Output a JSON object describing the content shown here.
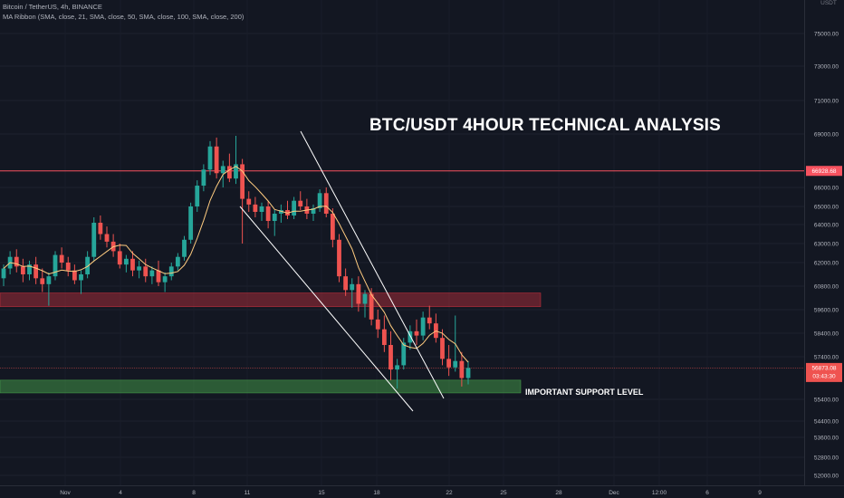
{
  "header": {
    "symbol_line": "Bitcoin / TetherUS, 4h, BINANCE",
    "indicator_line": "MA Ribbon (SMA, close, 21, SMA, close, 50, SMA, close, 100, SMA, close, 200)"
  },
  "quote_currency": "USDT",
  "overlays": {
    "title": "BTC/USDT 4HOUR TECHNICAL ANALYSIS",
    "support_label": "IMPORTANT SUPPORT LEVEL"
  },
  "price_badges": {
    "resistance": "66928.68",
    "current_price": "56873.08",
    "countdown": "03:43:30"
  },
  "colors": {
    "background": "#131722",
    "up": "#26a69a",
    "down": "#ef5350",
    "resistance_line": "#f7525f",
    "resistance_zone": "#f23645",
    "support_zone": "#4caf50",
    "ma": "#ffcc80",
    "trendline": "#ffffff"
  },
  "chart_data": {
    "type": "candlestick",
    "yaxis_ticks": [
      75000,
      73000,
      71000,
      69000,
      66000,
      65000,
      64000,
      63000,
      62000,
      60800,
      59600,
      58400,
      57400,
      55400,
      54400,
      53600,
      52800,
      52000
    ],
    "yaxis_tick_labels": [
      "75000.00",
      "73000.00",
      "71000.00",
      "69000.00",
      "66000.00",
      "65000.00",
      "64000.00",
      "63000.00",
      "62000.00",
      "60800.00",
      "59600.00",
      "58400.00",
      "57400.00",
      "55400.00",
      "54400.00",
      "53600.00",
      "52800.00",
      "52000.00"
    ],
    "xaxis_labels": [
      "Nov",
      "4",
      "8",
      "11",
      "15",
      "18",
      "22",
      "25",
      "28",
      "Dec",
      "12:00",
      "6",
      "9"
    ],
    "resistance_level": 66928.68,
    "current_price": 56873.08,
    "resistance_zone": [
      59750,
      60450
    ],
    "support_zone": [
      55700,
      56300
    ],
    "ma_label": "MA 21",
    "candles": [
      [
        61200,
        61900,
        60800,
        61700
      ],
      [
        61700,
        62600,
        61400,
        62300
      ],
      [
        62300,
        62700,
        61500,
        61800
      ],
      [
        61800,
        62200,
        61000,
        61400
      ],
      [
        61400,
        62100,
        61100,
        61900
      ],
      [
        61900,
        62300,
        60900,
        61200
      ],
      [
        61200,
        61700,
        60500,
        60900
      ],
      [
        60900,
        61500,
        59800,
        61300
      ],
      [
        61300,
        62600,
        61100,
        62400
      ],
      [
        62400,
        62800,
        61700,
        62000
      ],
      [
        62000,
        62300,
        61300,
        61600
      ],
      [
        61600,
        61900,
        60900,
        61100
      ],
      [
        61100,
        61600,
        60400,
        61400
      ],
      [
        61400,
        62600,
        61200,
        62300
      ],
      [
        62300,
        64400,
        62100,
        64100
      ],
      [
        64100,
        64500,
        63200,
        63500
      ],
      [
        63500,
        63900,
        62800,
        63100
      ],
      [
        63100,
        63500,
        62300,
        62600
      ],
      [
        62600,
        63000,
        61700,
        61900
      ],
      [
        61900,
        62400,
        61500,
        62200
      ],
      [
        62200,
        62600,
        61300,
        61600
      ],
      [
        61600,
        62100,
        61200,
        61800
      ],
      [
        61800,
        62200,
        61000,
        61300
      ],
      [
        61300,
        61800,
        60900,
        61600
      ],
      [
        61600,
        62100,
        60800,
        61000
      ],
      [
        61000,
        61500,
        60500,
        61300
      ],
      [
        61300,
        62000,
        61100,
        61800
      ],
      [
        61800,
        62500,
        61600,
        62300
      ],
      [
        62300,
        63400,
        62100,
        63200
      ],
      [
        63200,
        65200,
        63000,
        65000
      ],
      [
        65000,
        66400,
        64700,
        66100
      ],
      [
        66100,
        67300,
        65800,
        67000
      ],
      [
        67000,
        68600,
        66700,
        68300
      ],
      [
        68300,
        68800,
        66500,
        66800
      ],
      [
        66800,
        67500,
        66000,
        67200
      ],
      [
        67200,
        67900,
        66300,
        66500
      ],
      [
        66500,
        68900,
        66200,
        67300
      ],
      [
        67300,
        67600,
        63000,
        65400
      ],
      [
        65400,
        65800,
        64700,
        65100
      ],
      [
        65100,
        65500,
        64400,
        64700
      ],
      [
        64700,
        65200,
        64200,
        65000
      ],
      [
        65000,
        65300,
        63800,
        64200
      ],
      [
        64200,
        64800,
        63400,
        64600
      ],
      [
        64600,
        65100,
        64100,
        64800
      ],
      [
        64800,
        65300,
        64300,
        64500
      ],
      [
        64500,
        65500,
        64300,
        65300
      ],
      [
        65300,
        65800,
        64800,
        65000
      ],
      [
        65000,
        65400,
        64300,
        64600
      ],
      [
        64600,
        65100,
        64200,
        64900
      ],
      [
        64900,
        65900,
        64700,
        65700
      ],
      [
        65700,
        66000,
        64400,
        64600
      ],
      [
        64600,
        64900,
        62800,
        63200
      ],
      [
        63200,
        63500,
        61000,
        61300
      ],
      [
        61300,
        61700,
        60300,
        60600
      ],
      [
        60600,
        61200,
        59700,
        60900
      ],
      [
        60900,
        61300,
        59500,
        59900
      ],
      [
        59900,
        60600,
        59200,
        60400
      ],
      [
        60400,
        60700,
        58800,
        59100
      ],
      [
        59100,
        59600,
        58200,
        58600
      ],
      [
        58600,
        59300,
        57600,
        57900
      ],
      [
        57900,
        58500,
        56300,
        56800
      ],
      [
        56800,
        57300,
        55900,
        57000
      ],
      [
        57000,
        58200,
        56800,
        58000
      ],
      [
        58000,
        58800,
        57700,
        58500
      ],
      [
        58500,
        59100,
        57900,
        58300
      ],
      [
        58300,
        59500,
        58100,
        59200
      ],
      [
        59200,
        59800,
        58600,
        58900
      ],
      [
        58900,
        59400,
        58000,
        58200
      ],
      [
        58200,
        58600,
        57000,
        57300
      ],
      [
        57300,
        57900,
        56500,
        56900
      ],
      [
        56900,
        59300,
        56700,
        57200
      ],
      [
        57200,
        57600,
        56000,
        56400
      ],
      [
        56400,
        57200,
        56100,
        56873
      ]
    ]
  }
}
